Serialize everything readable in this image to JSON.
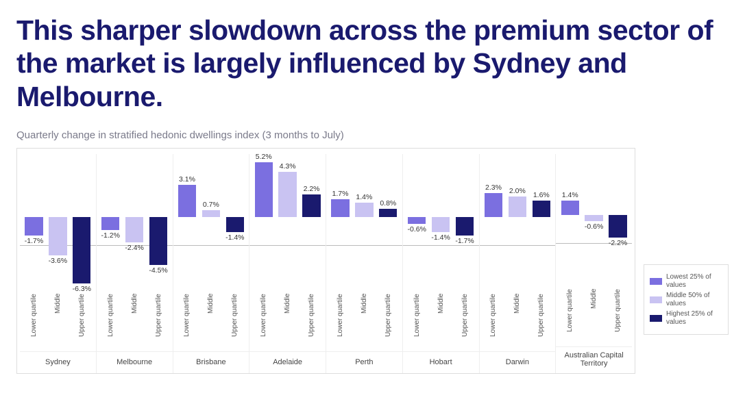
{
  "headline": "This sharper slowdown across the premium sector of the market is largely influenced by Sydney and Melbourne.",
  "subtitle": "Quarterly change in stratified hedonic dwellings index (3 months to July)",
  "chart": {
    "type": "bar",
    "y_domain": [
      -7.0,
      6.0
    ],
    "zero_line_color": "#bbbbbb",
    "background_color": "#ffffff",
    "border_color": "#dddddd",
    "value_label_fontsize": 10.5,
    "value_label_color": "#333333",
    "tier_label_fontsize": 10,
    "tier_label_color": "#555555",
    "city_label_fontsize": 11,
    "city_label_color": "#444444",
    "tiers": [
      {
        "key": "lower",
        "label": "Lower quartile",
        "color": "#7b6fe0"
      },
      {
        "key": "middle",
        "label": "Middle",
        "color": "#c9c3f2"
      },
      {
        "key": "upper",
        "label": "Upper quartile",
        "color": "#1a1a6e"
      }
    ],
    "cities": [
      {
        "name": "Sydney",
        "values": {
          "lower": -1.7,
          "middle": -3.6,
          "upper": -6.3
        }
      },
      {
        "name": "Melbourne",
        "values": {
          "lower": -1.2,
          "middle": -2.4,
          "upper": -4.5
        }
      },
      {
        "name": "Brisbane",
        "values": {
          "lower": 3.1,
          "middle": 0.7,
          "upper": -1.4
        }
      },
      {
        "name": "Adelaide",
        "values": {
          "lower": 5.2,
          "middle": 4.3,
          "upper": 2.2
        }
      },
      {
        "name": "Perth",
        "values": {
          "lower": 1.7,
          "middle": 1.4,
          "upper": 0.8
        }
      },
      {
        "name": "Hobart",
        "values": {
          "lower": -0.6,
          "middle": -1.4,
          "upper": -1.7
        }
      },
      {
        "name": "Darwin",
        "values": {
          "lower": 2.3,
          "middle": 2.0,
          "upper": 1.6
        }
      },
      {
        "name": "Australian Capital Territory",
        "values": {
          "lower": 1.4,
          "middle": -0.6,
          "upper": -2.2
        }
      }
    ]
  },
  "legend": {
    "items": [
      {
        "label": "Lowest 25% of values",
        "color": "#7b6fe0"
      },
      {
        "label": "Middle 50% of values",
        "color": "#c9c3f2"
      },
      {
        "label": "Highest 25% of values",
        "color": "#1a1a6e"
      }
    ]
  }
}
